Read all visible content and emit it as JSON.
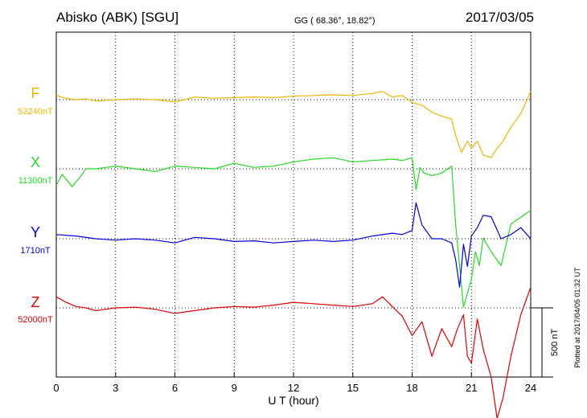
{
  "header": {
    "station": "Abisko (ABK)  [SGU]",
    "coords": "GG ( 68.36°,  18.82°)",
    "date": "2017/03/05"
  },
  "footer": {
    "plotted": "Plotted at 2017/04/05 01:32 UT"
  },
  "chart_data": {
    "type": "line",
    "title": "Abisko (ABK)  [SGU]",
    "xlabel": "U T (hour)",
    "xlim": [
      0,
      24
    ],
    "x_ticks": [
      "0",
      "3",
      "6",
      "9",
      "12",
      "15",
      "18",
      "21",
      "24"
    ],
    "grid": true,
    "scale_bar": {
      "label": "500 nT",
      "value_nT": 500
    },
    "series": [
      {
        "name": "F",
        "baseline_label": "53240nT",
        "color": "#f0b400",
        "x": [
          0,
          0.5,
          1,
          1.5,
          2,
          3,
          4,
          5,
          6,
          6.5,
          7,
          8,
          9,
          10,
          11,
          12,
          13,
          14,
          15,
          16,
          16.5,
          17,
          17.5,
          18,
          18.5,
          19,
          19.5,
          20,
          20.2,
          20.5,
          20.8,
          21,
          21.3,
          21.6,
          22,
          22.3,
          22.6,
          23,
          23.5,
          24
        ],
        "y": [
          30,
          10,
          0,
          5,
          -10,
          0,
          5,
          0,
          -15,
          0,
          20,
          10,
          15,
          20,
          15,
          25,
          30,
          35,
          30,
          45,
          60,
          20,
          30,
          -20,
          -40,
          -90,
          -120,
          -140,
          -260,
          -380,
          -300,
          -350,
          -300,
          -400,
          -420,
          -350,
          -300,
          -200,
          -100,
          60
        ]
      },
      {
        "name": "X",
        "baseline_label": "11300nT",
        "color": "#22dd22",
        "x": [
          0,
          0.3,
          0.8,
          1.2,
          1.5,
          2,
          3,
          4,
          5,
          6,
          7,
          8,
          9,
          10,
          11,
          12,
          13,
          14,
          15,
          16,
          17,
          17.5,
          18,
          18.2,
          18.4,
          18.6,
          19,
          19.5,
          20,
          20.2,
          20.4,
          20.6,
          20.8,
          21,
          21.2,
          21.4,
          21.6,
          22,
          22.5,
          23,
          23.5,
          24
        ],
        "y": [
          -120,
          -40,
          -130,
          -60,
          0,
          0,
          20,
          0,
          -20,
          20,
          10,
          0,
          40,
          10,
          20,
          50,
          70,
          80,
          50,
          60,
          70,
          60,
          80,
          -150,
          10,
          -30,
          -50,
          -30,
          20,
          -400,
          -700,
          -1000,
          -900,
          -800,
          -600,
          -700,
          -500,
          -600,
          -700,
          -400,
          -350,
          -300
        ]
      },
      {
        "name": "Y",
        "baseline_label": "1710nT",
        "color": "#0000dd",
        "x": [
          0,
          1,
          2,
          3,
          4,
          5,
          6,
          7,
          8,
          9,
          10,
          11,
          12,
          13,
          14,
          15,
          16,
          17,
          17.5,
          18,
          18.2,
          18.5,
          19,
          19.5,
          20,
          20.2,
          20.4,
          20.6,
          20.8,
          21,
          21.3,
          21.6,
          22,
          22.5,
          23,
          23.5,
          24
        ],
        "y": [
          30,
          20,
          0,
          -10,
          0,
          -10,
          -30,
          10,
          0,
          -20,
          -15,
          -30,
          -20,
          -10,
          -20,
          -10,
          20,
          40,
          30,
          60,
          260,
          100,
          0,
          0,
          -30,
          -150,
          -350,
          -40,
          -200,
          20,
          80,
          170,
          160,
          0,
          30,
          80,
          0
        ]
      },
      {
        "name": "Z",
        "baseline_label": "52000nT",
        "color": "#dd0000",
        "x": [
          0,
          0.5,
          1,
          1.5,
          2,
          3,
          4,
          5,
          6,
          7,
          8,
          9,
          10,
          11,
          12,
          13,
          14,
          15,
          16,
          16.5,
          17,
          17.5,
          18,
          18.5,
          19,
          19.5,
          20,
          20.3,
          20.6,
          20.8,
          21,
          21.3,
          21.6,
          22,
          22.3,
          22.6,
          23,
          23.5,
          24
        ],
        "y": [
          80,
          40,
          10,
          0,
          -20,
          0,
          5,
          -10,
          -40,
          -20,
          0,
          10,
          5,
          20,
          40,
          30,
          20,
          10,
          30,
          80,
          10,
          -60,
          -200,
          -100,
          -350,
          -150,
          -280,
          -150,
          -50,
          -350,
          -400,
          -80,
          -300,
          -500,
          -800,
          -650,
          -350,
          -50,
          150
        ]
      }
    ]
  }
}
